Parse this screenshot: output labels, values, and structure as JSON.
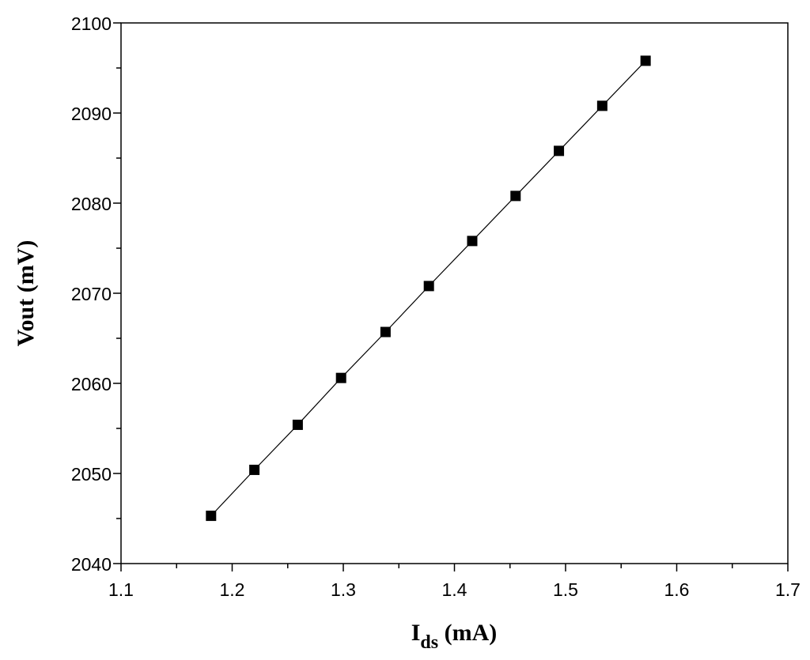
{
  "chart_data": {
    "type": "line",
    "title": "",
    "xlabel": {
      "main": "I",
      "sub": "ds",
      "rest": " (mA)"
    },
    "ylabel": "Vout (mV)",
    "xlim": [
      1.1,
      1.7
    ],
    "ylim": [
      2040,
      2100
    ],
    "x_ticks": [
      1.1,
      1.2,
      1.3,
      1.4,
      1.5,
      1.6,
      1.7
    ],
    "x_tick_labels": [
      "1.1",
      "1.2",
      "1.3",
      "1.4",
      "1.5",
      "1.6",
      "1.7"
    ],
    "y_ticks": [
      2040,
      2050,
      2060,
      2070,
      2080,
      2090,
      2100
    ],
    "y_tick_labels": [
      "2040",
      "2050",
      "2060",
      "2070",
      "2080",
      "2090",
      "2100"
    ],
    "grid": false,
    "legend": "none",
    "marker": "square",
    "colors": {
      "line": "#000000",
      "marker": "#000000",
      "axes": "#000000"
    },
    "series": [
      {
        "x": [
          1.181,
          1.22,
          1.259,
          1.298,
          1.338,
          1.377,
          1.416,
          1.455,
          1.494,
          1.533,
          1.572
        ],
        "y": [
          2045.3,
          2050.4,
          2055.4,
          2060.6,
          2065.7,
          2070.8,
          2075.8,
          2080.8,
          2085.8,
          2090.8,
          2095.8
        ]
      }
    ]
  }
}
